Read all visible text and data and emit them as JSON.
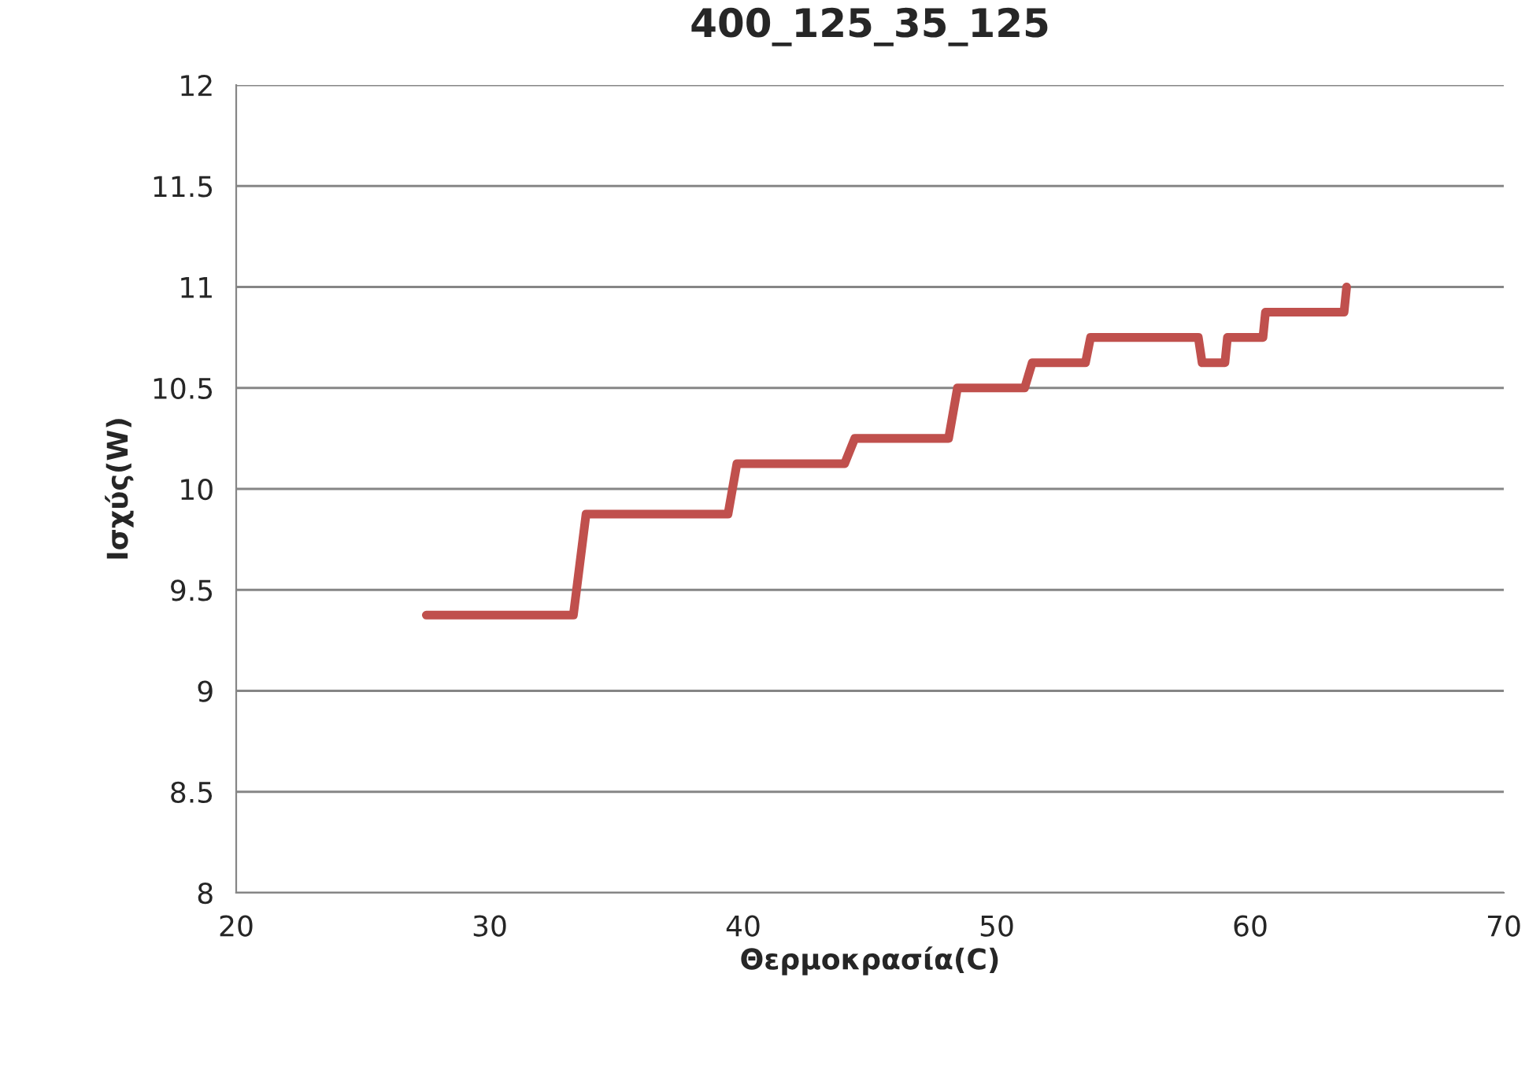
{
  "chart_data": {
    "type": "line",
    "title": "400_125_35_125",
    "xlabel": "Θερμοκρασία(C)",
    "ylabel": "Ισχύς(W)",
    "xlim": [
      20,
      70
    ],
    "xticks": [
      20,
      30,
      40,
      50,
      60,
      70
    ],
    "ylim": [
      8,
      12
    ],
    "yticks": [
      8,
      8.5,
      9,
      9.5,
      10,
      10.5,
      11,
      11.5,
      12
    ],
    "grid": "y",
    "legend": false,
    "marker": "none",
    "line_style": "solid",
    "series": [
      {
        "color": "#c0504d",
        "x": [
          27.5,
          33.3,
          33.8,
          39.4,
          39.75,
          44.0,
          44.4,
          48.1,
          48.45,
          51.1,
          51.4,
          53.5,
          53.7,
          57.95,
          58.1,
          59.0,
          59.1,
          60.5,
          60.6,
          63.7,
          63.8
        ],
        "values": [
          9.375,
          9.375,
          9.875,
          9.875,
          10.125,
          10.125,
          10.25,
          10.25,
          10.5,
          10.5,
          10.625,
          10.625,
          10.75,
          10.75,
          10.625,
          10.625,
          10.75,
          10.75,
          10.875,
          10.875,
          11.0
        ]
      }
    ]
  }
}
